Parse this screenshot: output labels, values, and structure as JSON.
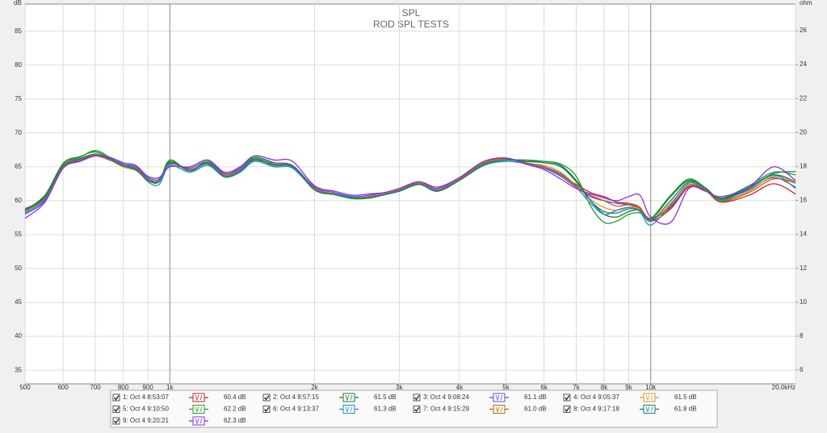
{
  "chart_data": {
    "type": "line",
    "title": "SPL",
    "subtitle": "ROD SPL TESTS",
    "y_label": "dB",
    "y2_label": "ohm",
    "log_x": true,
    "grid": true,
    "xlim": [
      500,
      20000
    ],
    "ylim": [
      33,
      89
    ],
    "y2lim": [
      5.19,
      27.57
    ],
    "xticks": [
      500,
      600,
      700,
      800,
      900,
      {
        "value": 1000,
        "label": "1k",
        "major": true
      },
      {
        "value": 2000,
        "label": "2k"
      },
      {
        "value": 3000,
        "label": "3k"
      },
      {
        "value": 4000,
        "label": "4k"
      },
      {
        "value": 5000,
        "label": "5k"
      },
      {
        "value": 6000,
        "label": "6k"
      },
      {
        "value": 7000,
        "label": "7k"
      },
      {
        "value": 8000,
        "label": "8k"
      },
      {
        "value": 9000,
        "label": "9k"
      },
      {
        "value": 10000,
        "label": "10k",
        "major": true
      },
      {
        "value": 20000,
        "label": "20.0kHz"
      }
    ],
    "yticks": [
      35,
      40,
      45,
      50,
      55,
      60,
      65,
      70,
      75,
      80,
      85
    ],
    "y2ticks": [
      6,
      8,
      10,
      12,
      14,
      16,
      18,
      20,
      22,
      24,
      26
    ],
    "x": [
      500,
      550,
      600,
      650,
      700,
      750,
      800,
      850,
      900,
      950,
      1000,
      1100,
      1200,
      1300,
      1400,
      1500,
      1650,
      1800,
      2000,
      2200,
      2400,
      2600,
      2800,
      3000,
      3300,
      3600,
      4000,
      4500,
      5000,
      5500,
      6000,
      6500,
      7000,
      7500,
      8000,
      8500,
      9000,
      9500,
      10000,
      11000,
      12000,
      13000,
      14000,
      16000,
      18000,
      20000
    ],
    "series": [
      {
        "name": "1: Oct 4 8:53:07",
        "level": "60.4 dB",
        "color": "#cc2020",
        "values": [
          58.8,
          60.5,
          65.0,
          66.0,
          66.6,
          66.0,
          65.2,
          64.8,
          63.2,
          63.0,
          65.6,
          64.6,
          65.5,
          63.8,
          64.6,
          66.0,
          65.3,
          65.0,
          61.8,
          61.0,
          60.4,
          60.6,
          61.0,
          61.6,
          62.6,
          61.6,
          63.2,
          65.6,
          66.2,
          65.6,
          65.0,
          63.8,
          62.4,
          61.2,
          60.6,
          59.8,
          59.6,
          59.0,
          57.0,
          58.8,
          62.0,
          61.5,
          59.8,
          60.8,
          62.5,
          61.0
        ]
      },
      {
        "name": "2: Oct 4 8:57:15",
        "level": "61.5 dB",
        "color": "#1f7a2a",
        "values": [
          58.6,
          60.8,
          65.5,
          66.5,
          67.2,
          66.2,
          65.0,
          64.5,
          63.0,
          62.8,
          65.8,
          64.4,
          65.6,
          63.6,
          64.4,
          66.2,
          65.2,
          65.0,
          61.6,
          60.9,
          60.4,
          60.4,
          60.9,
          61.4,
          62.4,
          61.4,
          63.0,
          65.4,
          66.0,
          65.8,
          65.8,
          65.2,
          63.0,
          60.0,
          58.0,
          57.6,
          58.4,
          58.6,
          57.2,
          60.6,
          63.0,
          61.8,
          60.3,
          62.0,
          64.0,
          64.3
        ]
      },
      {
        "name": "3: Oct 4 9:08:24",
        "level": "61.1 dB",
        "color": "#5050d8",
        "values": [
          58.0,
          60.0,
          64.8,
          66.0,
          66.8,
          66.2,
          65.4,
          65.0,
          63.4,
          63.2,
          65.4,
          64.8,
          65.8,
          64.0,
          64.8,
          66.4,
          65.6,
          65.2,
          62.0,
          61.2,
          60.6,
          60.8,
          61.2,
          61.8,
          62.8,
          61.8,
          63.4,
          65.8,
          66.2,
          65.4,
          64.8,
          63.6,
          62.0,
          60.6,
          60.0,
          59.6,
          59.4,
          58.8,
          57.4,
          59.0,
          62.2,
          61.6,
          60.2,
          61.6,
          63.4,
          62.0
        ]
      },
      {
        "name": "4: Oct 4 9:05:37",
        "level": "61.5 dB",
        "color": "#e8901c",
        "values": [
          58.4,
          60.4,
          65.2,
          66.2,
          66.8,
          66.0,
          65.0,
          64.6,
          63.0,
          62.9,
          65.5,
          64.5,
          65.4,
          63.7,
          64.5,
          66.0,
          65.2,
          64.9,
          61.7,
          61.0,
          60.5,
          60.5,
          61.0,
          61.5,
          62.5,
          61.5,
          63.1,
          65.5,
          66.1,
          65.5,
          65.2,
          64.2,
          62.2,
          60.2,
          59.0,
          58.6,
          59.0,
          58.8,
          57.0,
          59.6,
          62.4,
          61.7,
          60.0,
          61.4,
          63.6,
          62.6
        ]
      },
      {
        "name": "5: Oct 4 9:10:50",
        "level": "62.2 dB",
        "color": "#22a022",
        "values": [
          58.6,
          60.6,
          65.4,
          66.4,
          67.4,
          66.4,
          65.2,
          64.6,
          63.2,
          62.9,
          66.0,
          64.4,
          65.8,
          63.5,
          64.4,
          66.4,
          65.4,
          65.1,
          61.6,
          60.9,
          60.3,
          60.4,
          60.9,
          61.4,
          62.4,
          61.4,
          63.0,
          65.4,
          66.0,
          66.0,
          65.8,
          65.4,
          63.6,
          59.2,
          56.8,
          57.0,
          58.0,
          58.2,
          57.4,
          60.8,
          63.2,
          61.9,
          60.4,
          62.2,
          64.2,
          63.8
        ]
      },
      {
        "name": "6: Oct 4 9:13:37",
        "level": "61.3 dB",
        "color": "#2288cc",
        "values": [
          58.2,
          60.2,
          64.8,
          65.8,
          66.6,
          66.2,
          65.4,
          64.8,
          62.8,
          62.4,
          65.2,
          64.2,
          65.2,
          63.5,
          64.2,
          65.8,
          65.0,
          64.8,
          61.7,
          61.0,
          60.5,
          60.5,
          61.0,
          61.5,
          62.5,
          61.5,
          63.0,
          65.2,
          65.8,
          65.5,
          65.0,
          64.0,
          62.0,
          59.6,
          58.0,
          58.6,
          59.0,
          58.4,
          56.4,
          59.4,
          62.6,
          61.6,
          60.0,
          61.8,
          63.8,
          61.8
        ]
      },
      {
        "name": "7: Oct 4 9:15:29",
        "level": "61.0 dB",
        "color": "#c0600c",
        "values": [
          58.6,
          60.4,
          65.0,
          66.1,
          66.7,
          66.0,
          65.1,
          64.8,
          63.1,
          63.0,
          65.5,
          64.6,
          65.4,
          63.8,
          64.6,
          66.0,
          65.3,
          65.0,
          61.8,
          61.0,
          60.4,
          60.6,
          61.0,
          61.6,
          62.6,
          61.6,
          63.2,
          65.6,
          66.2,
          65.6,
          65.0,
          63.8,
          62.2,
          60.8,
          60.0,
          59.2,
          59.4,
          58.9,
          57.2,
          59.2,
          62.2,
          61.6,
          59.9,
          61.2,
          63.2,
          62.6
        ]
      },
      {
        "name": "8: Oct 4 9:17:18",
        "level": "61.8 dB",
        "color": "#118080",
        "values": [
          58.5,
          60.6,
          65.2,
          66.2,
          66.9,
          66.2,
          65.2,
          64.6,
          63.0,
          62.8,
          65.6,
          64.4,
          65.5,
          63.6,
          64.4,
          66.0,
          65.2,
          65.0,
          61.6,
          60.9,
          60.4,
          60.4,
          60.9,
          61.4,
          62.4,
          61.4,
          63.0,
          65.3,
          66.0,
          65.8,
          65.6,
          65.0,
          62.8,
          60.0,
          58.4,
          58.2,
          58.8,
          58.6,
          57.0,
          60.0,
          62.8,
          61.8,
          60.2,
          61.8,
          63.8,
          62.8
        ]
      },
      {
        "name": "9: Oct 4 9:20:21",
        "level": "62.3 dB",
        "color": "#8a2be8",
        "values": [
          57.4,
          59.8,
          64.8,
          65.8,
          66.6,
          66.4,
          65.6,
          65.2,
          63.6,
          63.4,
          65.0,
          65.0,
          66.0,
          64.2,
          65.0,
          66.6,
          66.0,
          65.8,
          62.2,
          61.4,
          60.8,
          61.0,
          61.2,
          61.8,
          62.8,
          62.0,
          63.4,
          65.8,
          66.3,
          65.4,
          64.6,
          63.2,
          61.8,
          61.0,
          60.4,
          60.0,
          60.6,
          60.8,
          57.6,
          56.8,
          61.8,
          61.4,
          60.6,
          62.0,
          65.0,
          63.0
        ]
      }
    ]
  }
}
